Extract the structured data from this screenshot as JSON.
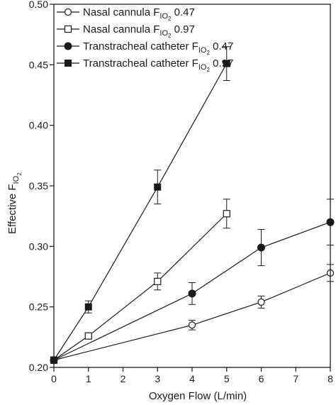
{
  "chart_data": {
    "type": "line",
    "title": "",
    "xlabel": "Oxygen Flow (L/min)",
    "ylabel": {
      "main": "Effective F",
      "sub": "IO",
      "subsub": "2"
    },
    "xlim": [
      0,
      8
    ],
    "ylim": [
      0.2,
      0.5
    ],
    "x_ticks": [
      "0",
      "1",
      "2",
      "3",
      "4",
      "5",
      "6",
      "7",
      "8"
    ],
    "y_ticks": [
      "0.20",
      "0.25",
      "0.30",
      "0.35",
      "0.40",
      "0.45",
      "0.50"
    ],
    "legend_position": "top-left",
    "series": [
      {
        "key": "nc047",
        "legend": {
          "prefix": "Nasal cannula F",
          "sub": "IO",
          "subsub": "2",
          "value": " 0.47"
        },
        "marker": "circle-open",
        "points": [
          {
            "x": 0,
            "y": 0.206,
            "err": 0
          },
          {
            "x": 4,
            "y": 0.235,
            "err": 0.004
          },
          {
            "x": 6,
            "y": 0.254,
            "err": 0.005
          },
          {
            "x": 8,
            "y": 0.278,
            "err": 0.007
          }
        ]
      },
      {
        "key": "nc097",
        "legend": {
          "prefix": "Nasal cannula F",
          "sub": "IO",
          "subsub": "2",
          "value": " 0.97"
        },
        "marker": "square-open",
        "points": [
          {
            "x": 0,
            "y": 0.206,
            "err": 0
          },
          {
            "x": 1,
            "y": 0.226,
            "err": 0.002
          },
          {
            "x": 3,
            "y": 0.271,
            "err": 0.007
          },
          {
            "x": 5,
            "y": 0.327,
            "err": 0.012
          }
        ]
      },
      {
        "key": "tc047",
        "legend": {
          "prefix": "Transtracheal catheter F",
          "sub": "IO",
          "subsub": "2",
          "value": "  0.47"
        },
        "marker": "circle-filled",
        "points": [
          {
            "x": 0,
            "y": 0.206,
            "err": 0
          },
          {
            "x": 4,
            "y": 0.261,
            "err": 0.009
          },
          {
            "x": 6,
            "y": 0.299,
            "err": 0.015
          },
          {
            "x": 8,
            "y": 0.32,
            "err": 0.019
          }
        ]
      },
      {
        "key": "tc097",
        "legend": {
          "prefix": "Transtracheal catheter F",
          "sub": "IO",
          "subsub": "2",
          "value": "  0.97"
        },
        "marker": "square-filled",
        "points": [
          {
            "x": 0,
            "y": 0.206,
            "err": 0
          },
          {
            "x": 1,
            "y": 0.25,
            "err": 0.005
          },
          {
            "x": 3,
            "y": 0.349,
            "err": 0.014
          },
          {
            "x": 5,
            "y": 0.451,
            "err": 0.014
          }
        ]
      }
    ]
  }
}
